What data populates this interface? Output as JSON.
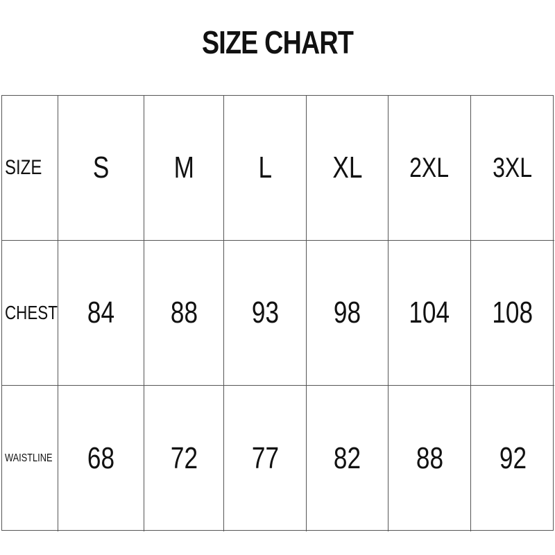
{
  "title": "SIZE CHART",
  "table": {
    "rows": [
      [
        "SIZE",
        "S",
        "M",
        "L",
        "XL",
        "2XL",
        "3XL"
      ],
      [
        "CHEST",
        84,
        88,
        93,
        98,
        104,
        108
      ],
      [
        "WAISTLINE",
        68,
        72,
        77,
        82,
        88,
        92
      ]
    ]
  }
}
